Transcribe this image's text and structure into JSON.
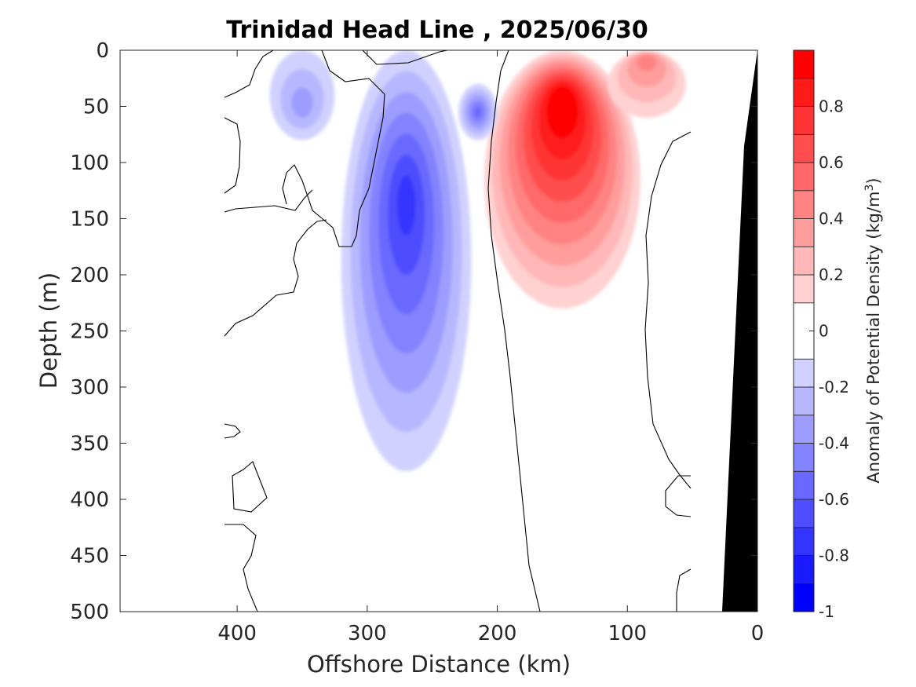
{
  "chart_data": {
    "type": "heatmap",
    "subtype": "filled-contour section",
    "title": "Trinidad Head Line , 2025/06/30",
    "xlabel": "Offshore Distance (km)",
    "ylabel": "Depth (m)",
    "xlim": [
      490,
      0
    ],
    "ylim": [
      0,
      500
    ],
    "x_direction": "reversed",
    "y_direction": "reversed",
    "xticks": [
      400,
      300,
      200,
      100,
      0
    ],
    "xtick_labels": [
      "400",
      "300",
      "200",
      "100",
      "0"
    ],
    "yticks": [
      0,
      50,
      100,
      150,
      200,
      250,
      300,
      350,
      400,
      450,
      500
    ],
    "ytick_labels": [
      "0",
      "50",
      "100",
      "150",
      "200",
      "250",
      "300",
      "350",
      "400",
      "450",
      "500"
    ],
    "data_extent_x": [
      50,
      410
    ],
    "grid": false,
    "colorbar": {
      "label": "Anomaly of Potential Density (kg/m",
      "label_superscript": "3",
      "label_close": ")",
      "range": [
        -1,
        1
      ],
      "levels": [
        -1,
        -0.9,
        -0.8,
        -0.7,
        -0.6,
        -0.5,
        -0.4,
        -0.3,
        -0.2,
        -0.1,
        0.1,
        0.2,
        0.3,
        0.4,
        0.5,
        0.6,
        0.7,
        0.8,
        0.9,
        1.0
      ],
      "ticks": [
        -1,
        -0.8,
        -0.6,
        -0.4,
        -0.2,
        0,
        0.2,
        0.4,
        0.6,
        0.8
      ],
      "tick_labels": [
        "-1",
        "-0.8",
        "-0.6",
        "-0.4",
        "-0.2",
        "0",
        "0.2",
        "0.4",
        "0.6",
        "0.8"
      ],
      "colormap": "blue-white-red",
      "negative_color": "#0000ff",
      "zero_color": "#ffffff",
      "positive_color": "#ff0000"
    },
    "features": [
      {
        "kind": "anomaly",
        "sign": "positive",
        "center_x_km": 150,
        "center_depth_m": 40,
        "peak": 1.0,
        "x_range_km": [
          190,
          70
        ],
        "depth_range_m": [
          0,
          230
        ]
      },
      {
        "kind": "anomaly",
        "sign": "negative",
        "center_x_km": 270,
        "center_depth_m": 130,
        "peak": -0.7,
        "x_range_km": [
          300,
          200
        ],
        "depth_range_m": [
          0,
          375
        ]
      },
      {
        "kind": "anomaly",
        "sign": "negative",
        "center_x_km": 350,
        "center_depth_m": 50,
        "peak": -0.3,
        "x_range_km": [
          370,
          320
        ],
        "depth_range_m": [
          0,
          80
        ]
      },
      {
        "kind": "anomaly",
        "sign": "negative",
        "center_x_km": 215,
        "center_depth_m": 55,
        "peak": -0.5,
        "x_range_km": [
          230,
          200
        ],
        "depth_range_m": [
          30,
          80
        ]
      },
      {
        "kind": "anomaly",
        "sign": "positive",
        "center_x_km": 85,
        "center_depth_m": 5,
        "peak": 0.4,
        "x_range_km": [
          110,
          50
        ],
        "depth_range_m": [
          0,
          60
        ]
      }
    ],
    "bathymetry": {
      "color": "#000000",
      "points": [
        [
          0,
          0
        ],
        [
          30,
          500
        ],
        [
          0,
          500
        ]
      ]
    }
  }
}
